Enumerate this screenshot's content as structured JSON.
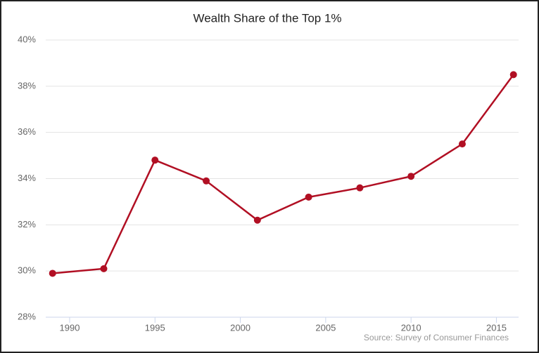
{
  "chart_data": {
    "type": "line",
    "title": "Wealth Share of the Top 1%",
    "source": "Source: Survey of Consumer Finances",
    "x": [
      1989,
      1992,
      1995,
      1998,
      2001,
      2004,
      2007,
      2010,
      2013,
      2016
    ],
    "series": [
      {
        "name": "Top 1%",
        "color": "#b10f23",
        "values": [
          29.9,
          30.1,
          34.8,
          33.9,
          32.2,
          33.2,
          33.6,
          34.1,
          35.5,
          38.5
        ]
      }
    ],
    "xlim": [
      1988.6,
      2016.3
    ],
    "xticks": [
      1990,
      1995,
      2000,
      2005,
      2010,
      2015
    ],
    "ylim": [
      28,
      40
    ],
    "yticks": [
      {
        "value": 28,
        "label": "28%"
      },
      {
        "value": 30,
        "label": "30%"
      },
      {
        "value": 32,
        "label": "32%"
      },
      {
        "value": 34,
        "label": "34%"
      },
      {
        "value": 36,
        "label": "36%"
      },
      {
        "value": 38,
        "label": "38%"
      },
      {
        "value": 40,
        "label": "40%"
      }
    ],
    "grid": true
  }
}
